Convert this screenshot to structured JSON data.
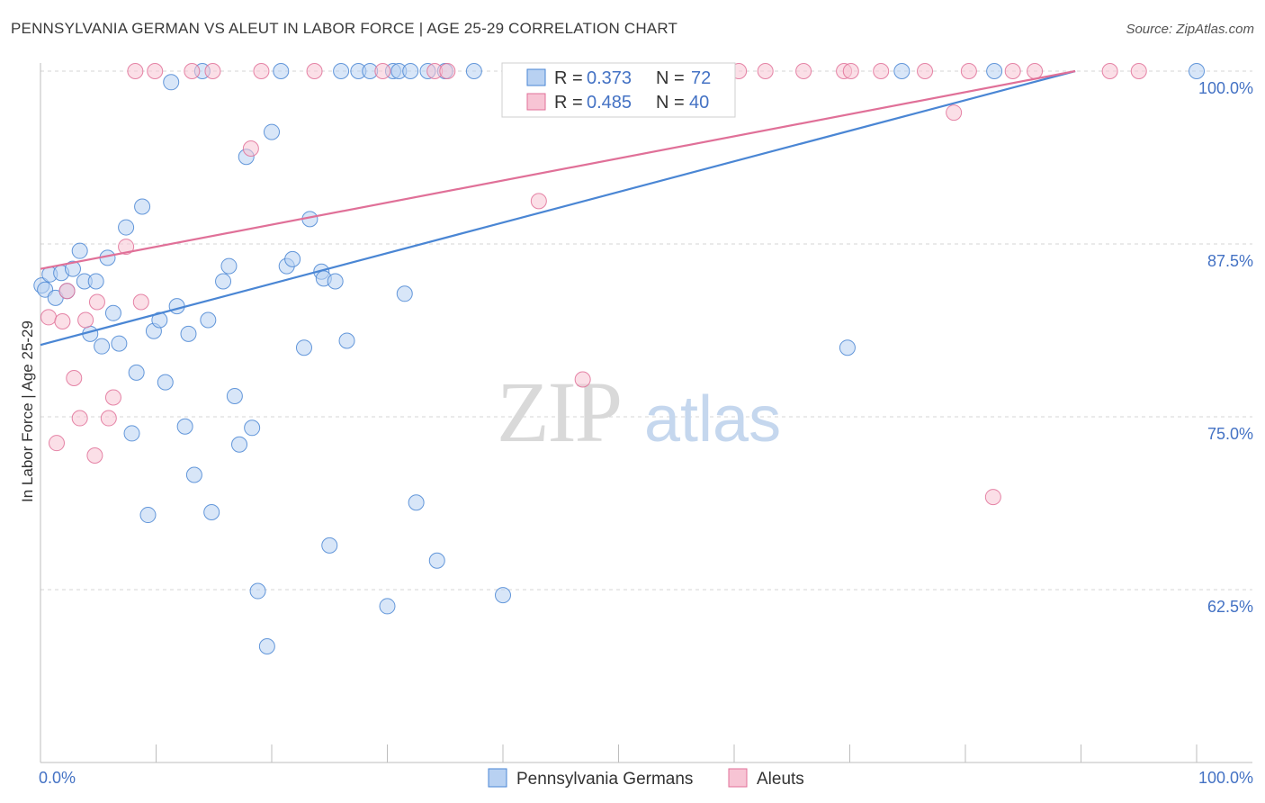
{
  "title": "PENNSYLVANIA GERMAN VS ALEUT IN LABOR FORCE | AGE 25-29 CORRELATION CHART",
  "source": "Source: ZipAtlas.com",
  "watermark": {
    "zip": "ZIP",
    "atlas": "atlas"
  },
  "colors": {
    "blue": "#4a86d4",
    "blue_fill": "#b8d1f2",
    "pink": "#e07098",
    "pink_fill": "#f7c4d4",
    "tick_label": "#4472c4"
  },
  "legend_top": {
    "rows": [
      {
        "r_label": "R = ",
        "r_value": "0.373",
        "n_label": "N = ",
        "n_value": "72"
      },
      {
        "r_label": "R = ",
        "r_value": "0.485",
        "n_label": "N = ",
        "n_value": "40"
      }
    ]
  },
  "legend_bottom": [
    "Pennsylvania Germans",
    "Aleuts"
  ],
  "chart_data": {
    "type": "scatter",
    "title": "PENNSYLVANIA GERMAN VS ALEUT IN LABOR FORCE | AGE 25-29 CORRELATION CHART",
    "xlabel": "",
    "ylabel": "In Labor Force | Age 25-29",
    "xlim": [
      0,
      100
    ],
    "ylim": [
      52.5,
      101.5
    ],
    "x_tick_labels": [
      "0.0%",
      "100.0%"
    ],
    "y_ticks": [
      62.5,
      75.0,
      87.5,
      100.0
    ],
    "y_tick_labels": [
      "62.5%",
      "75.0%",
      "87.5%",
      "100.0%"
    ],
    "grid": "horizontal dashed",
    "legend": "top-center and bottom",
    "series": [
      {
        "name": "Pennsylvania Germans",
        "color": "#4a86d4",
        "R": 0.373,
        "N": 72,
        "trend": {
          "x": [
            0,
            89.5
          ],
          "y": [
            80.2,
            100.0
          ]
        },
        "points": [
          [
            0.1,
            84.5
          ],
          [
            0.4,
            84.2
          ],
          [
            0.8,
            85.3
          ],
          [
            1.3,
            83.6
          ],
          [
            1.8,
            85.4
          ],
          [
            2.3,
            84.1
          ],
          [
            2.8,
            85.7
          ],
          [
            3.4,
            87.0
          ],
          [
            3.8,
            84.8
          ],
          [
            4.3,
            81.0
          ],
          [
            4.8,
            84.8
          ],
          [
            5.3,
            80.1
          ],
          [
            5.8,
            86.5
          ],
          [
            6.3,
            82.5
          ],
          [
            6.8,
            80.3
          ],
          [
            7.4,
            88.7
          ],
          [
            7.9,
            73.8
          ],
          [
            8.3,
            78.2
          ],
          [
            8.8,
            90.2
          ],
          [
            9.3,
            67.9
          ],
          [
            9.8,
            81.2
          ],
          [
            10.3,
            82.0
          ],
          [
            10.8,
            77.5
          ],
          [
            11.3,
            99.2
          ],
          [
            11.8,
            83.0
          ],
          [
            12.5,
            74.3
          ],
          [
            12.8,
            81.0
          ],
          [
            13.3,
            70.8
          ],
          [
            14.0,
            100.0
          ],
          [
            14.5,
            82.0
          ],
          [
            14.8,
            68.1
          ],
          [
            15.8,
            84.8
          ],
          [
            16.3,
            85.9
          ],
          [
            16.8,
            76.5
          ],
          [
            17.2,
            73.0
          ],
          [
            17.8,
            93.8
          ],
          [
            18.3,
            74.2
          ],
          [
            18.8,
            62.4
          ],
          [
            19.6,
            58.4
          ],
          [
            20.0,
            95.6
          ],
          [
            20.8,
            100.0
          ],
          [
            21.3,
            85.9
          ],
          [
            21.8,
            86.4
          ],
          [
            22.8,
            80.0
          ],
          [
            23.3,
            89.3
          ],
          [
            24.3,
            85.5
          ],
          [
            24.5,
            85.0
          ],
          [
            25.0,
            65.7
          ],
          [
            25.5,
            84.8
          ],
          [
            26.0,
            100.0
          ],
          [
            26.5,
            80.5
          ],
          [
            27.5,
            100.0
          ],
          [
            28.5,
            100.0
          ],
          [
            30.0,
            61.3
          ],
          [
            30.5,
            100.0
          ],
          [
            31.0,
            100.0
          ],
          [
            31.5,
            83.9
          ],
          [
            32.0,
            100.0
          ],
          [
            32.5,
            68.8
          ],
          [
            33.5,
            100.0
          ],
          [
            34.3,
            64.6
          ],
          [
            35.0,
            100.0
          ],
          [
            37.5,
            100.0
          ],
          [
            40.0,
            62.1
          ],
          [
            43.0,
            100.0
          ],
          [
            45.5,
            100.0
          ],
          [
            57.0,
            100.0
          ],
          [
            58.5,
            100.0
          ],
          [
            69.8,
            80.0
          ],
          [
            74.5,
            100.0
          ],
          [
            82.5,
            100.0
          ],
          [
            100.0,
            100.0
          ]
        ]
      },
      {
        "name": "Aleuts",
        "color": "#e07098",
        "R": 0.485,
        "N": 40,
        "trend": {
          "x": [
            0,
            89.5
          ],
          "y": [
            85.7,
            100.0
          ]
        },
        "points": [
          [
            0.7,
            82.2
          ],
          [
            1.4,
            73.1
          ],
          [
            1.9,
            81.9
          ],
          [
            2.3,
            84.1
          ],
          [
            2.9,
            77.8
          ],
          [
            3.4,
            74.9
          ],
          [
            3.9,
            82.0
          ],
          [
            4.7,
            72.2
          ],
          [
            4.9,
            83.3
          ],
          [
            5.9,
            74.9
          ],
          [
            6.3,
            76.4
          ],
          [
            7.4,
            87.3
          ],
          [
            8.2,
            100.0
          ],
          [
            8.7,
            83.3
          ],
          [
            9.9,
            100.0
          ],
          [
            13.1,
            100.0
          ],
          [
            14.9,
            100.0
          ],
          [
            18.2,
            94.4
          ],
          [
            19.1,
            100.0
          ],
          [
            23.7,
            100.0
          ],
          [
            29.6,
            100.0
          ],
          [
            34.1,
            100.0
          ],
          [
            35.2,
            100.0
          ],
          [
            43.1,
            90.6
          ],
          [
            46.9,
            77.7
          ],
          [
            51.1,
            100.0
          ],
          [
            60.4,
            100.0
          ],
          [
            62.7,
            100.0
          ],
          [
            69.5,
            100.0
          ],
          [
            70.1,
            100.0
          ],
          [
            72.7,
            100.0
          ],
          [
            79.0,
            97.0
          ],
          [
            80.3,
            100.0
          ],
          [
            82.4,
            69.2
          ],
          [
            84.1,
            100.0
          ],
          [
            86.0,
            100.0
          ],
          [
            92.5,
            100.0
          ],
          [
            95.0,
            100.0
          ],
          [
            76.5,
            100.0
          ],
          [
            66.0,
            100.0
          ]
        ]
      }
    ]
  }
}
